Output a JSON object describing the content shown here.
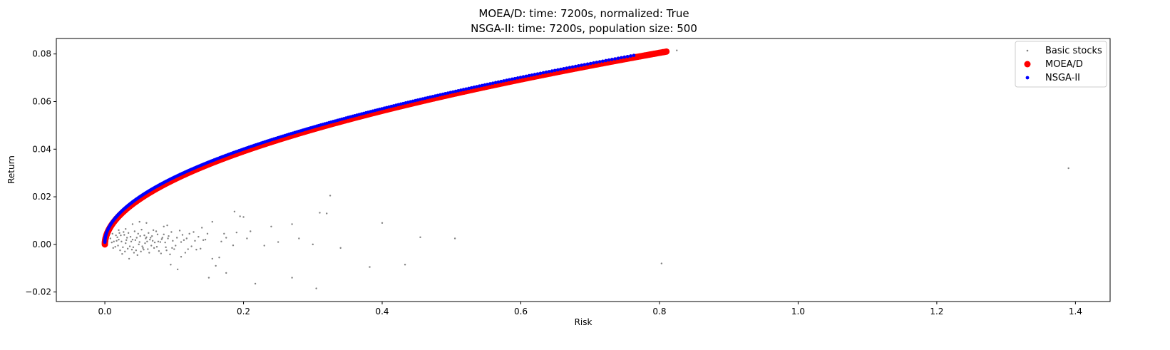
{
  "chart_data": {
    "type": "scatter",
    "title": "MOEA/D: time: 7200s, normalized: True",
    "subtitle": "NSGA-II: time: 7200s, population size: 500",
    "xlabel": "Risk",
    "ylabel": "Return",
    "xlim": [
      -0.07,
      1.45
    ],
    "ylim": [
      -0.024,
      0.0865
    ],
    "xticks": [
      0.0,
      0.2,
      0.4,
      0.6,
      0.8,
      1.0,
      1.2,
      1.4
    ],
    "xtick_labels": [
      "0.0",
      "0.2",
      "0.4",
      "0.6",
      "0.8",
      "1.0",
      "1.2",
      "1.4"
    ],
    "yticks": [
      -0.02,
      0.0,
      0.02,
      0.04,
      0.06,
      0.08
    ],
    "ytick_labels": [
      "−0.02",
      "0.00",
      "0.02",
      "0.04",
      "0.06",
      "0.08"
    ],
    "grid": false,
    "legend_position": "top-right",
    "series": [
      {
        "name": "Basic stocks",
        "color": "#808080",
        "marker": "small-dot",
        "points": [
          [
            0.825,
            0.0815
          ],
          [
            1.39,
            0.032
          ],
          [
            0.803,
            -0.008
          ],
          [
            0.325,
            0.0205
          ],
          [
            0.32,
            0.013
          ],
          [
            0.31,
            0.0133
          ],
          [
            0.187,
            0.0138
          ],
          [
            0.195,
            0.0118
          ],
          [
            0.2,
            0.0115
          ],
          [
            0.4,
            0.009
          ],
          [
            0.382,
            -0.0095
          ],
          [
            0.433,
            -0.0085
          ],
          [
            0.455,
            0.003
          ],
          [
            0.505,
            0.0025
          ],
          [
            0.3,
            0.0
          ],
          [
            0.34,
            -0.0015
          ],
          [
            0.27,
            -0.014
          ],
          [
            0.305,
            -0.0185
          ],
          [
            0.217,
            -0.0165
          ],
          [
            0.23,
            -0.0005
          ],
          [
            0.25,
            0.001
          ],
          [
            0.24,
            0.0075
          ],
          [
            0.27,
            0.0085
          ],
          [
            0.28,
            0.0025
          ],
          [
            0.175,
            -0.012
          ],
          [
            0.15,
            -0.014
          ],
          [
            0.16,
            -0.009
          ],
          [
            0.155,
            -0.006
          ],
          [
            0.165,
            -0.0055
          ],
          [
            0.14,
            0.007
          ],
          [
            0.155,
            0.0095
          ],
          [
            0.145,
            0.002
          ],
          [
            0.13,
            0.0015
          ],
          [
            0.12,
            -0.002
          ],
          [
            0.11,
            0.001
          ],
          [
            0.1,
            -0.002
          ],
          [
            0.095,
            -0.0085
          ],
          [
            0.105,
            -0.0105
          ],
          [
            0.09,
            0.008
          ],
          [
            0.085,
            0.0075
          ],
          [
            0.07,
            0.006
          ],
          [
            0.06,
            0.009
          ],
          [
            0.05,
            0.0095
          ],
          [
            0.04,
            0.0085
          ],
          [
            0.03,
            0.0065
          ],
          [
            0.02,
            0.006
          ],
          [
            0.025,
            -0.004
          ],
          [
            0.035,
            -0.006
          ],
          [
            0.045,
            -0.0025
          ],
          [
            0.055,
            -0.0015
          ],
          [
            0.065,
            0.002
          ],
          [
            0.075,
            -0.001
          ],
          [
            0.08,
            0.001
          ],
          [
            0.06,
            0.003
          ],
          [
            0.05,
            0.001
          ],
          [
            0.04,
            0.002
          ],
          [
            0.03,
            0.0005
          ],
          [
            0.02,
            0.002
          ],
          [
            0.015,
            -0.001
          ],
          [
            0.01,
            0.0008
          ],
          [
            0.012,
            -0.0015
          ],
          [
            0.018,
            0.003
          ],
          [
            0.022,
            -0.0025
          ],
          [
            0.028,
            0.004
          ],
          [
            0.033,
            -0.0018
          ],
          [
            0.038,
            0.0012
          ],
          [
            0.042,
            -0.0035
          ],
          [
            0.048,
            0.0045
          ],
          [
            0.052,
            -0.003
          ],
          [
            0.058,
            0.0005
          ],
          [
            0.062,
            -0.002
          ],
          [
            0.068,
            0.0035
          ],
          [
            0.072,
            0.0008
          ],
          [
            0.078,
            -0.0028
          ],
          [
            0.082,
            0.0022
          ],
          [
            0.088,
            -0.0012
          ],
          [
            0.092,
            0.0035
          ],
          [
            0.098,
            0.0015
          ],
          [
            0.112,
            0.004
          ],
          [
            0.118,
            0.0025
          ],
          [
            0.125,
            -0.0008
          ],
          [
            0.135,
            0.0032
          ],
          [
            0.175,
            0.0028
          ],
          [
            0.185,
            -0.0004
          ],
          [
            0.205,
            0.0025
          ],
          [
            0.21,
            0.0055
          ],
          [
            0.19,
            0.005
          ],
          [
            0.172,
            0.0045
          ],
          [
            0.008,
            0.0025
          ],
          [
            0.011,
            0.0045
          ],
          [
            0.016,
            0.0038
          ],
          [
            0.024,
            0.0012
          ],
          [
            0.027,
            0.0052
          ],
          [
            0.032,
            0.0028
          ],
          [
            0.036,
            -0.0008
          ],
          [
            0.044,
            0.0018
          ],
          [
            0.047,
            -0.0045
          ],
          [
            0.053,
            0.0062
          ],
          [
            0.057,
            0.0038
          ],
          [
            0.063,
            0.0048
          ],
          [
            0.067,
            -0.0005
          ],
          [
            0.074,
            0.0055
          ],
          [
            0.085,
            0.0042
          ],
          [
            0.094,
            -0.0042
          ],
          [
            0.108,
            0.0058
          ],
          [
            0.116,
            -0.0035
          ],
          [
            0.128,
            0.0052
          ],
          [
            0.138,
            -0.0018
          ],
          [
            0.148,
            0.0045
          ],
          [
            0.168,
            0.0012
          ],
          [
            0.013,
            0.0012
          ],
          [
            0.019,
            -0.0005
          ],
          [
            0.023,
            0.0038
          ],
          [
            0.029,
            -0.003
          ],
          [
            0.034,
            0.0048
          ],
          [
            0.039,
            -0.0022
          ],
          [
            0.043,
            0.0055
          ],
          [
            0.049,
            0.0
          ],
          [
            0.054,
            -0.0008
          ],
          [
            0.059,
            0.0025
          ],
          [
            0.064,
            -0.0035
          ],
          [
            0.069,
            0.0015
          ],
          [
            0.076,
            0.0042
          ],
          [
            0.081,
            -0.0038
          ],
          [
            0.087,
            0.0008
          ],
          [
            0.091,
            0.0025
          ],
          [
            0.096,
            0.0052
          ],
          [
            0.102,
            -0.0005
          ],
          [
            0.114,
            0.0018
          ],
          [
            0.122,
            0.0045
          ],
          [
            0.017,
            0.0015
          ],
          [
            0.021,
            0.0048
          ],
          [
            0.026,
            -0.0012
          ],
          [
            0.031,
            0.0018
          ],
          [
            0.037,
            0.0032
          ],
          [
            0.041,
            -0.0012
          ],
          [
            0.046,
            0.0028
          ],
          [
            0.051,
            0.0035
          ],
          [
            0.056,
            -0.0022
          ],
          [
            0.061,
            0.0012
          ],
          [
            0.066,
            0.0028
          ],
          [
            0.071,
            -0.0015
          ],
          [
            0.077,
            0.0012
          ],
          [
            0.083,
            0.0028
          ],
          [
            0.089,
            -0.0025
          ],
          [
            0.097,
            -0.0015
          ],
          [
            0.104,
            0.0028
          ],
          [
            0.11,
            -0.0052
          ],
          [
            0.132,
            -0.0022
          ],
          [
            0.142,
            0.0018
          ]
        ]
      },
      {
        "name": "MOEA/D",
        "color": "#ff0000",
        "marker": "large-dot",
        "curve": {
          "x_range": [
            0.0,
            0.81
          ],
          "y_range": [
            0.0,
            0.081
          ],
          "points": 500
        }
      },
      {
        "name": "NSGA-II",
        "color": "#0000ff",
        "marker": "medium-dot",
        "curve": {
          "x_range": [
            0.0,
            0.763
          ],
          "y_range": [
            0.0,
            0.0786
          ],
          "points": 320
        }
      }
    ]
  }
}
